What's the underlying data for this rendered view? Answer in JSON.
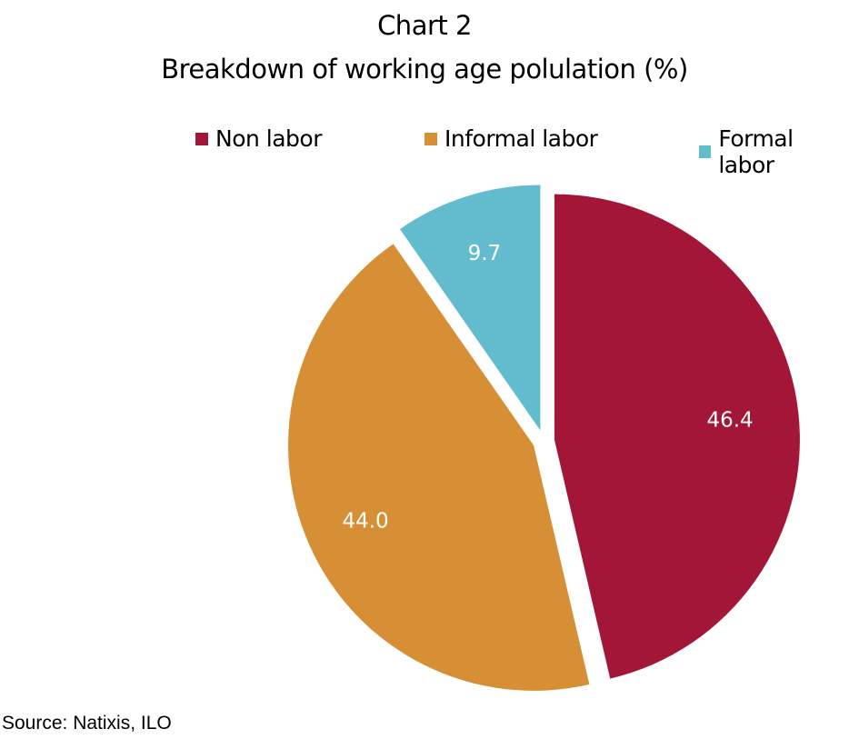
{
  "chart_data": {
    "type": "pie",
    "title": "Chart 2",
    "subtitle": "Breakdown of working age polulation (%)",
    "categories": [
      "Non labor",
      "Informal labor",
      "Formal labor"
    ],
    "values": [
      46.4,
      44.0,
      9.7
    ],
    "value_labels": [
      "46.4",
      "44.0",
      "9.7"
    ],
    "colors": [
      "#a31638",
      "#d68f35",
      "#62bccd"
    ],
    "exploded": true,
    "legend_position": "top"
  },
  "legend": [
    {
      "label": "Non labor",
      "color": "#a31638"
    },
    {
      "label": "Informal labor",
      "color": "#d68f35"
    },
    {
      "label": "Formal labor",
      "color": "#62bccd"
    }
  ],
  "source": "Source:  Natixis, ILO"
}
